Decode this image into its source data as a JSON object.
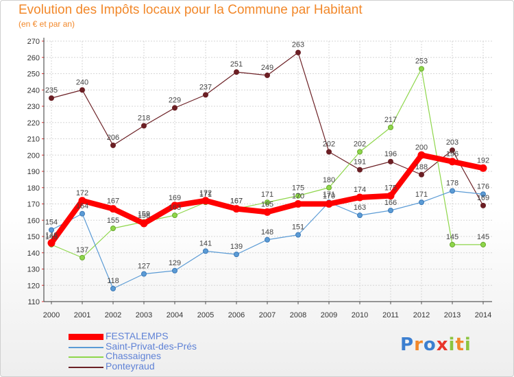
{
  "header": {
    "title": "Evolution des Impôts locaux pour la Commune par Habitant",
    "subtitle": "(en € et par an)"
  },
  "logo": {
    "letters": [
      "P",
      "r",
      "o",
      "x",
      "i",
      "t",
      "i"
    ]
  },
  "chart_data": {
    "type": "line",
    "title": "Evolution des Impôts locaux pour la Commune par Habitant",
    "subtitle": "(en € et par an)",
    "xlabel": "",
    "ylabel": "",
    "x": [
      "2000",
      "2001",
      "2002",
      "2003",
      "2004",
      "2005",
      "2006",
      "2007",
      "2008",
      "2009",
      "2010",
      "2011",
      "2012",
      "2013",
      "2014"
    ],
    "ylim": [
      110,
      270
    ],
    "yticks": [
      110,
      120,
      130,
      140,
      150,
      160,
      170,
      180,
      190,
      200,
      210,
      220,
      230,
      240,
      250,
      260,
      270
    ],
    "grid": true,
    "legend_position": "bottom-left",
    "series": [
      {
        "name": "Ponteyraud",
        "color": "#6b1f24",
        "values": [
          235,
          240,
          206,
          218,
          229,
          237,
          251,
          249,
          263,
          202,
          191,
          196,
          188,
          203,
          169
        ],
        "labels": [
          "235",
          "240",
          "206",
          "218",
          "229",
          "237",
          "251",
          "249",
          "263",
          "202",
          "191",
          "196",
          "188",
          "203",
          "169"
        ]
      },
      {
        "name": "Chassaignes",
        "color": "#8ed64a",
        "values": [
          145,
          137,
          155,
          159,
          163,
          171,
          167,
          171,
          175,
          180,
          202,
          217,
          253,
          145,
          145
        ],
        "labels": [
          "145",
          "137",
          "155",
          "159",
          "163",
          "171",
          "167",
          "171",
          "175",
          "180",
          "202",
          "217",
          "253",
          "145",
          "145"
        ]
      },
      {
        "name": "Saint-Privat-des-Prés",
        "color": "#5b9bd5",
        "values": [
          154,
          164,
          118,
          127,
          129,
          141,
          139,
          148,
          151,
          171,
          163,
          166,
          171,
          178,
          176
        ],
        "labels": [
          "154",
          "164",
          "118",
          "127",
          "129",
          "141",
          "139",
          "148",
          "151",
          "171",
          "163",
          "166",
          "171",
          "178",
          "176"
        ]
      },
      {
        "name": "FESTALEMPS",
        "color": "#ff0000",
        "values": [
          146,
          172,
          167,
          158,
          169,
          172,
          167,
          165,
          170,
          170,
          174,
          175,
          200,
          196,
          192
        ],
        "labels": [
          "146",
          "172",
          "167",
          "158",
          "169",
          "172",
          "167",
          "165",
          "170",
          "170",
          "174",
          "175",
          "200",
          "196",
          "192"
        ]
      }
    ],
    "legend": [
      "FESTALEMPS",
      "Saint-Privat-des-Prés",
      "Chassaignes",
      "Ponteyraud"
    ]
  }
}
